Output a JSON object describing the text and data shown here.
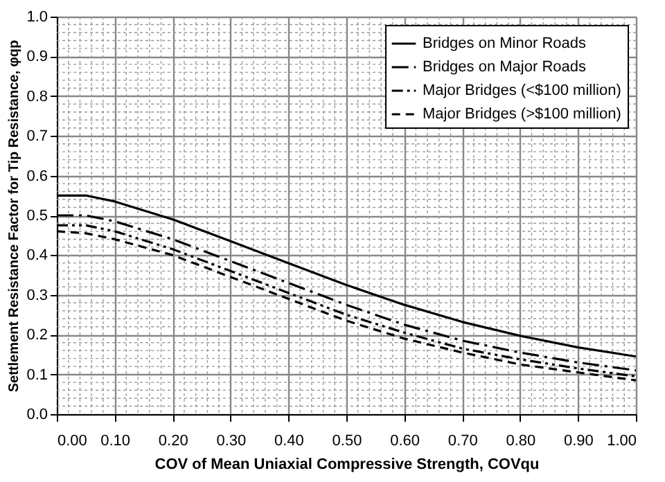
{
  "chart_data": {
    "type": "line",
    "xlabel": "COV of Mean Uniaxial Compressive Strength, COVqu",
    "ylabel": "Settlement Resistance Factor for Tip Resistance, φqp",
    "x": [
      0,
      0.05,
      0.1,
      0.2,
      0.3,
      0.4,
      0.5,
      0.6,
      0.7,
      0.8,
      0.9,
      1.0
    ],
    "series": [
      {
        "name": "Bridges on Minor Roads",
        "color": "#000000",
        "line_style": "solid",
        "values": [
          0.55,
          0.55,
          0.535,
          0.49,
          0.435,
          0.38,
          0.325,
          0.275,
          0.232,
          0.197,
          0.168,
          0.145
        ]
      },
      {
        "name": "Bridges on Major Roads",
        "color": "#000000",
        "line_style": "dashdot",
        "values": [
          0.5,
          0.5,
          0.485,
          0.44,
          0.385,
          0.33,
          0.275,
          0.225,
          0.185,
          0.155,
          0.13,
          0.11
        ]
      },
      {
        "name": "Major Bridges (<$100 million)",
        "color": "#000000",
        "line_style": "dashdotdot",
        "values": [
          0.475,
          0.475,
          0.46,
          0.415,
          0.36,
          0.305,
          0.25,
          0.205,
          0.165,
          0.138,
          0.115,
          0.095
        ]
      },
      {
        "name": "Major Bridges (>$100 million)",
        "color": "#000000",
        "line_style": "dashed",
        "values": [
          0.46,
          0.455,
          0.44,
          0.4,
          0.345,
          0.29,
          0.235,
          0.19,
          0.155,
          0.125,
          0.105,
          0.085
        ]
      }
    ],
    "xlim": [
      0,
      1
    ],
    "ylim": [
      0,
      1
    ],
    "xticks": [
      {
        "value": 0,
        "label": "0.00"
      },
      {
        "value": 0.1,
        "label": "0.10"
      },
      {
        "value": 0.2,
        "label": "0.20"
      },
      {
        "value": 0.3,
        "label": "0.30"
      },
      {
        "value": 0.4,
        "label": "0.40"
      },
      {
        "value": 0.5,
        "label": "0.50"
      },
      {
        "value": 0.6,
        "label": "0.60"
      },
      {
        "value": 0.7,
        "label": "0.70"
      },
      {
        "value": 0.8,
        "label": "0.80"
      },
      {
        "value": 0.9,
        "label": "0.90"
      },
      {
        "value": 1,
        "label": "1.00"
      }
    ],
    "yticks": [
      {
        "value": 0,
        "label": "0.0"
      },
      {
        "value": 0.1,
        "label": "0.1"
      },
      {
        "value": 0.2,
        "label": "0.2"
      },
      {
        "value": 0.3,
        "label": "0.3"
      },
      {
        "value": 0.4,
        "label": "0.4"
      },
      {
        "value": 0.5,
        "label": "0.5"
      },
      {
        "value": 0.6,
        "label": "0.6"
      },
      {
        "value": 0.7,
        "label": "0.7"
      },
      {
        "value": 0.8,
        "label": "0.8"
      },
      {
        "value": 0.9,
        "label": "0.9"
      },
      {
        "value": 1,
        "label": "1.0"
      }
    ],
    "grid": true,
    "legend": "top right",
    "marker": "none"
  }
}
